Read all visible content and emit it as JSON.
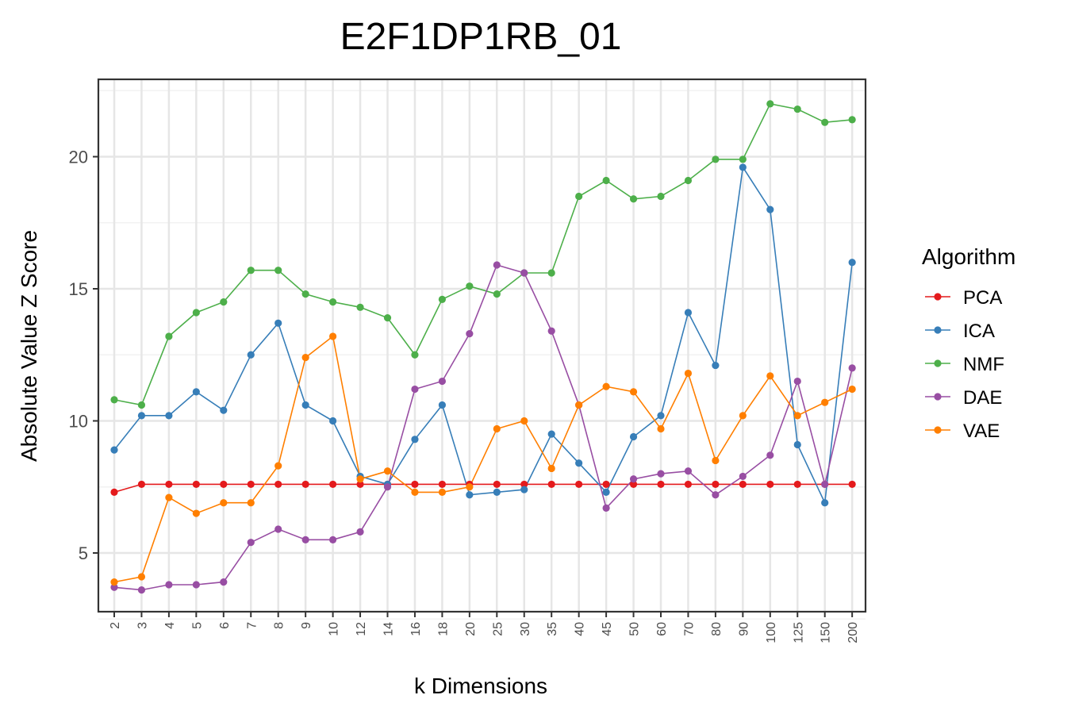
{
  "chart_data": {
    "type": "line",
    "title": "E2F1DP1RB_01",
    "xlabel": "k Dimensions",
    "ylabel": "Absolute Value Z Score",
    "categories": [
      "2",
      "3",
      "4",
      "5",
      "6",
      "7",
      "8",
      "9",
      "10",
      "12",
      "14",
      "16",
      "18",
      "20",
      "25",
      "30",
      "35",
      "40",
      "45",
      "50",
      "60",
      "70",
      "80",
      "90",
      "100",
      "125",
      "150",
      "200"
    ],
    "y_ticks": [
      5,
      10,
      15,
      20
    ],
    "ylim": [
      2.5,
      22.7
    ],
    "grid": true,
    "legend": {
      "title": "Algorithm",
      "placement": "right"
    },
    "series": [
      {
        "name": "PCA",
        "color": "#E41A1C",
        "values": [
          7.3,
          7.6,
          7.6,
          7.6,
          7.6,
          7.6,
          7.6,
          7.6,
          7.6,
          7.6,
          7.6,
          7.6,
          7.6,
          7.6,
          7.6,
          7.6,
          7.6,
          7.6,
          7.6,
          7.6,
          7.6,
          7.6,
          7.6,
          7.6,
          7.6,
          7.6,
          7.6,
          7.6
        ]
      },
      {
        "name": "ICA",
        "color": "#377EB8",
        "values": [
          8.9,
          10.2,
          10.2,
          11.1,
          10.4,
          12.5,
          13.7,
          10.6,
          10.0,
          7.9,
          7.6,
          9.3,
          10.6,
          7.2,
          7.3,
          7.4,
          9.5,
          8.4,
          7.3,
          9.4,
          10.2,
          14.1,
          12.1,
          19.6,
          18.0,
          9.1,
          6.9,
          16.0
        ]
      },
      {
        "name": "NMF",
        "color": "#4DAF4A",
        "values": [
          10.8,
          10.6,
          13.2,
          14.1,
          14.5,
          15.7,
          15.7,
          14.8,
          14.5,
          14.3,
          13.9,
          12.5,
          14.6,
          15.1,
          14.8,
          15.6,
          15.6,
          18.5,
          19.1,
          18.4,
          18.5,
          19.1,
          19.9,
          19.9,
          22.0,
          21.8,
          21.3,
          21.4
        ]
      },
      {
        "name": "DAE",
        "color": "#984EA3",
        "values": [
          3.7,
          3.6,
          3.8,
          3.8,
          3.9,
          5.4,
          5.9,
          5.5,
          5.5,
          5.8,
          7.5,
          11.2,
          11.5,
          13.3,
          15.9,
          15.6,
          13.4,
          10.6,
          6.7,
          7.8,
          8.0,
          8.1,
          7.2,
          7.9,
          8.7,
          11.5,
          7.6,
          12.0
        ]
      },
      {
        "name": "VAE",
        "color": "#FF7F00",
        "values": [
          3.9,
          4.1,
          7.1,
          6.5,
          6.9,
          6.9,
          8.3,
          12.4,
          13.2,
          7.8,
          8.1,
          7.3,
          7.3,
          7.5,
          9.7,
          10.0,
          8.2,
          10.6,
          11.3,
          11.1,
          9.7,
          11.8,
          8.5,
          10.2,
          11.7,
          10.2,
          10.7,
          11.2
        ]
      }
    ]
  }
}
